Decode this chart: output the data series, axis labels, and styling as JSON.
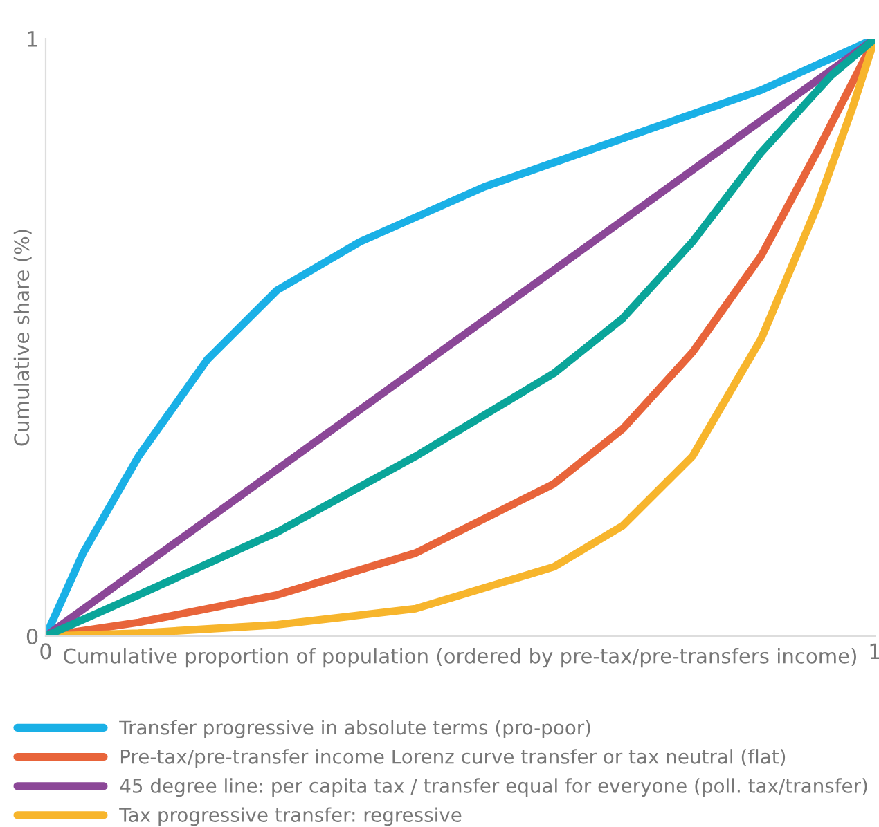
{
  "chart_data": {
    "type": "line",
    "xlabel": "Cumulative proportion of population (ordered by pre-tax/pre-transfers income)",
    "ylabel": "Cumulative share (%)",
    "xlim": [
      0,
      1
    ],
    "ylim": [
      0,
      1
    ],
    "xticks": [
      0,
      1
    ],
    "yticks": [
      0,
      1
    ],
    "grid": false,
    "legend": "bottom",
    "marker": "none",
    "line_style": "solid",
    "series": [
      {
        "name": "Transfer progressive in absolute terms (pro-poor)",
        "color": "#1ab0e6",
        "x": [
          0,
          0.045,
          0.112,
          0.195,
          0.279,
          0.379,
          0.529,
          0.696,
          0.863,
          1
        ],
        "values": [
          0,
          0.139,
          0.301,
          0.463,
          0.579,
          0.66,
          0.752,
          0.833,
          0.914,
          1
        ]
      },
      {
        "name": "Pre-tax/pre-transfer income Lorenz curve transfer or tax neutral (flat)",
        "color": "#e8643a",
        "x": [
          0,
          0.112,
          0.279,
          0.446,
          0.613,
          0.696,
          0.78,
          0.863,
          0.93,
          1
        ],
        "values": [
          0,
          0.023,
          0.069,
          0.139,
          0.255,
          0.347,
          0.475,
          0.637,
          0.81,
          1
        ]
      },
      {
        "name": "45 degree line: per capita tax / transfer equal for everyone (poll. tax/transfer)",
        "color": "#8b4797",
        "x": [
          0,
          1
        ],
        "values": [
          0,
          1
        ]
      },
      {
        "name": "Tax progressive transfer: regressive",
        "color": "#f7b52c",
        "x": [
          0,
          0.112,
          0.279,
          0.446,
          0.613,
          0.696,
          0.78,
          0.863,
          0.93,
          0.972,
          1
        ],
        "values": [
          0,
          0.005,
          0.019,
          0.046,
          0.116,
          0.185,
          0.301,
          0.498,
          0.718,
          0.88,
          1
        ]
      },
      {
        "color": "#0aa59a",
        "x": [
          0,
          0.112,
          0.279,
          0.446,
          0.613,
          0.696,
          0.78,
          0.863,
          0.947,
          1
        ],
        "values": [
          0,
          0.069,
          0.174,
          0.301,
          0.44,
          0.532,
          0.66,
          0.81,
          0.938,
          1
        ]
      }
    ]
  }
}
